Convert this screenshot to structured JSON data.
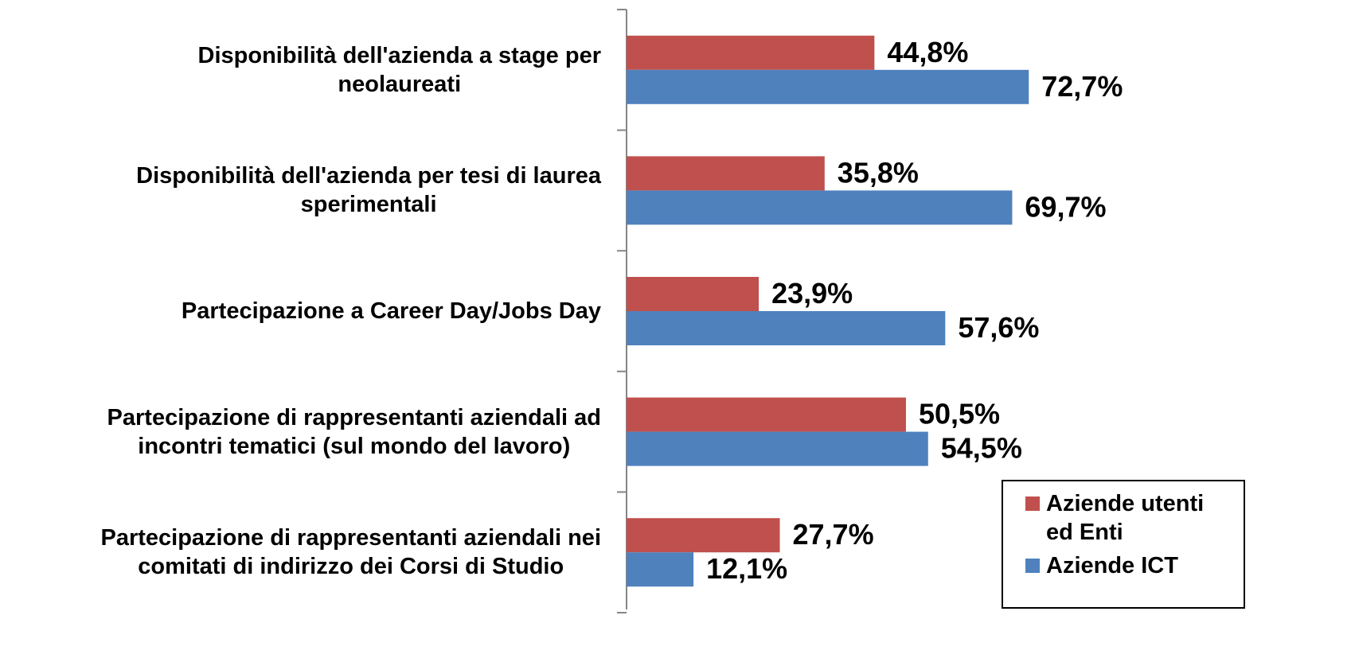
{
  "chart_data": {
    "type": "bar",
    "orientation": "horizontal",
    "categories": [
      "Disponibilità dell'azienda a stage per\nneolaureati",
      "Disponibilità dell'azienda per tesi di laurea\nsperimentali",
      "Partecipazione a Career Day/Jobs Day",
      "Partecipazione di rappresentanti aziendali ad\nincontri tematici (sul mondo del lavoro)",
      "Partecipazione di rappresentanti aziendali nei\ncomitati di indirizzo dei Corsi di Studio"
    ],
    "series": [
      {
        "name": "Aziende utenti ed Enti",
        "color": "#c0504d",
        "values": [
          44.8,
          35.8,
          23.9,
          50.5,
          27.7
        ],
        "value_labels": [
          "44,8%",
          "35,8%",
          "23,9%",
          "50,5%",
          "27,7%"
        ]
      },
      {
        "name": "Aziende ICT",
        "color": "#4f81bd",
        "values": [
          72.7,
          69.7,
          57.6,
          54.5,
          12.1
        ],
        "value_labels": [
          "72,7%",
          "69,7%",
          "57,6%",
          "54,5%",
          "12,1%"
        ]
      }
    ],
    "xlim": [
      0,
      100
    ],
    "legend": "bottom-right"
  }
}
